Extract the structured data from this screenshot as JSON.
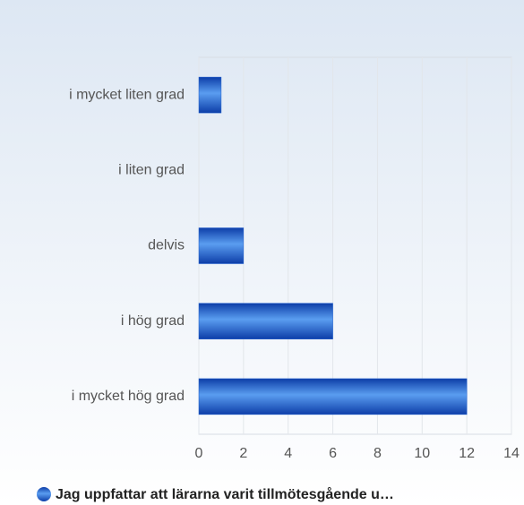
{
  "chart_data": {
    "type": "bar",
    "orientation": "horizontal",
    "categories": [
      "i mycket liten grad",
      "i liten grad",
      "delvis",
      "i hög grad",
      "i mycket hög grad"
    ],
    "series": [
      {
        "name": "Jag uppfattar att lärarna varit tillmötesgående u…",
        "color": "#1f5fcf",
        "values": [
          1,
          0,
          2,
          6,
          12
        ]
      }
    ],
    "xlim": [
      0,
      14
    ],
    "xticks": [
      0,
      2,
      4,
      6,
      8,
      10,
      12,
      14
    ],
    "grid": true,
    "legend": "bottom"
  }
}
